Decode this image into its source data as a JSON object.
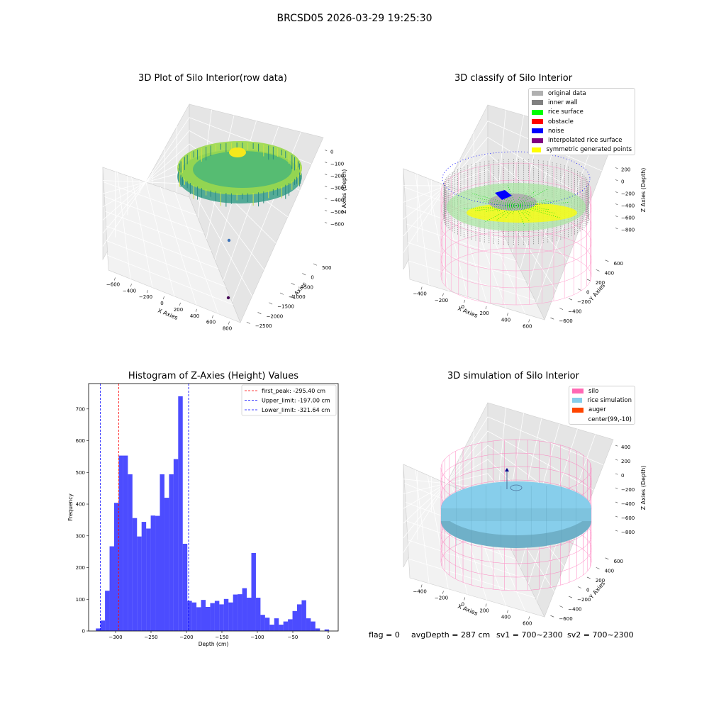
{
  "suptitle": "BRCSD05 2026-03-29 19:25:30",
  "panel_tl": {
    "title": "3D Plot of Silo Interior(row data)",
    "x_label": "X Axies",
    "y_label": "Y Axies",
    "z_label": "Z Axies (Depth)",
    "x_ticks": [
      "−600",
      "−400",
      "−200",
      "0",
      "200",
      "400",
      "600",
      "800"
    ],
    "y_ticks": [
      "−2500",
      "−2000",
      "−1500",
      "−1000",
      "−500",
      "0",
      "500"
    ],
    "z_ticks": [
      "0",
      "−100",
      "−200",
      "−300",
      "−400",
      "−500",
      "−600"
    ]
  },
  "panel_tr": {
    "title": "3D classify of Silo Interior",
    "x_label": "X Axies",
    "y_label": "Y Axies",
    "z_label": "Z Axies (Depth)",
    "x_ticks": [
      "−400",
      "−200",
      "0",
      "200",
      "400",
      "600"
    ],
    "y_ticks": [
      "−600",
      "−400",
      "−200",
      "0",
      "200",
      "400",
      "600"
    ],
    "z_ticks": [
      "200",
      "0",
      "−200",
      "−400",
      "−600",
      "−800"
    ],
    "legend": [
      {
        "label": "original data",
        "color": "#b0b0b0"
      },
      {
        "label": "inner wall",
        "color": "#808080"
      },
      {
        "label": "rice surface",
        "color": "#00ff00"
      },
      {
        "label": "obstacle",
        "color": "#ff0000"
      },
      {
        "label": "noise",
        "color": "#0000ff"
      },
      {
        "label": "interpolated rice surface",
        "color": "#800080"
      },
      {
        "label": "symmetric generated points",
        "color": "#ffff00"
      }
    ]
  },
  "panel_br": {
    "title": "3D simulation of Silo Interior",
    "x_label": "X Axies",
    "y_label": "Y Axies",
    "z_label": "Z Axies (Depth)",
    "x_ticks": [
      "−400",
      "−200",
      "0",
      "200",
      "400",
      "600"
    ],
    "y_ticks": [
      "−600",
      "−400",
      "−200",
      "0",
      "200",
      "400",
      "600"
    ],
    "z_ticks": [
      "400",
      "200",
      "0",
      "−200",
      "−400",
      "−600",
      "−800"
    ],
    "legend": [
      {
        "label": "silo",
        "color": "#ff69b4"
      },
      {
        "label": "rice simulation",
        "color": "#87ceeb"
      },
      {
        "label": "auger",
        "color": "#ff4500"
      },
      {
        "label": "center(99,-10)",
        "color": ""
      }
    ]
  },
  "footer": {
    "flag": "flag = 0",
    "avg_depth": "avgDepth = 287 cm",
    "sv1": "sv1 = 700~2300",
    "sv2": "sv2 = 700~2300"
  },
  "chart_data": {
    "type": "bar",
    "title": "Histogram of Z-Axies (Height) Values",
    "xlabel": "Depth (cm)",
    "ylabel": "Frequency",
    "xlim": [
      -338,
      14
    ],
    "ylim": [
      0,
      780
    ],
    "x_ticks": [
      -300,
      -250,
      -200,
      -150,
      -100,
      -50,
      0
    ],
    "x_tick_labels": [
      "−300",
      "−250",
      "−200",
      "−150",
      "−100",
      "−50",
      "0"
    ],
    "y_ticks": [
      0,
      100,
      200,
      300,
      400,
      500,
      600,
      700
    ],
    "bin_start": -327.8,
    "bin_width": 6.45,
    "values": [
      8,
      33,
      127,
      267,
      404,
      553,
      553,
      494,
      356,
      298,
      344,
      323,
      364,
      363,
      494,
      420,
      494,
      542,
      740,
      275,
      95,
      90,
      75,
      98,
      76,
      88,
      95,
      84,
      101,
      90,
      115,
      116,
      135,
      105,
      246,
      105,
      51,
      42,
      20,
      40,
      20,
      30,
      37,
      63,
      84,
      97,
      40,
      30,
      8,
      0,
      5
    ],
    "bar_color": "#0000ff",
    "bar_opacity": 0.7,
    "vlines": [
      {
        "x": -295.4,
        "color": "#ff0000",
        "label": "first_peak: -295.40 cm"
      },
      {
        "x": -197.0,
        "color": "#0000ff",
        "label": "Upper_limit: -197.00 cm"
      },
      {
        "x": -321.64,
        "color": "#0000ff",
        "label": "Lower_limit: -321.64 cm"
      }
    ],
    "legend_position": "upper right"
  }
}
